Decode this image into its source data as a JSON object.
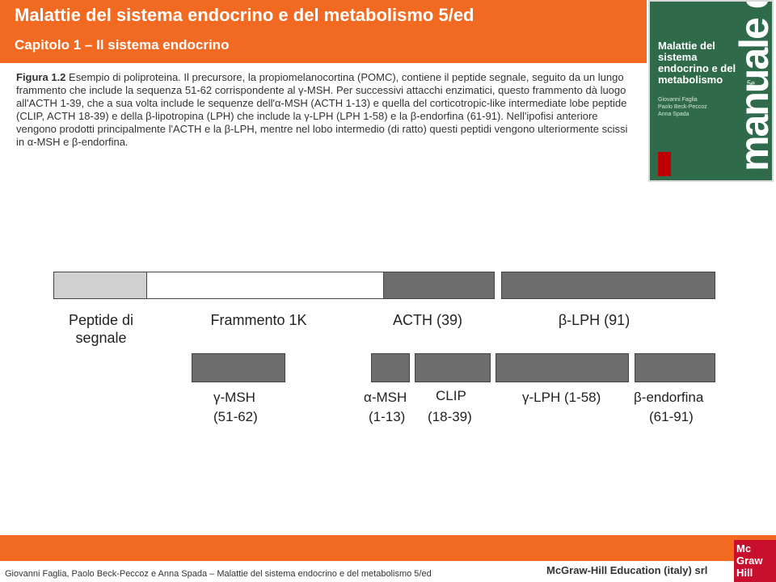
{
  "header": {
    "title": "Malattie del sistema endocrino e del metabolismo 5/ed",
    "subtitle": "Capitolo 1 – Il sistema endocrino"
  },
  "cover": {
    "title": "Malattie del sistema endocrino e del metabolismo",
    "edition": "5e",
    "authors": "Giovanni Faglia\nPaolo Beck-Peccoz\nAnna Spada",
    "series": "manuale di",
    "logo": "Mc Graw Hill"
  },
  "caption": {
    "label": "Figura 1.2",
    "text": "Esempio di poliproteina. Il precursore, la propiomelanocortina (POMC), contiene il peptide segnale, seguito da un lungo frammento che include la sequenza 51-62 corrispondente al γ-MSH. Per successivi attacchi enzimatici, questo frammento dà luogo all'ACTH 1-39, che a sua volta include le sequenze dell'α-MSH (ACTH 1-13) e quella del corticotropic-like intermediate lobe peptide (CLIP, ACTH 18-39) e della β-lipotropina (LPH) che include la γ-LPH (LPH 1-58) e la β-endorfina (61-91). Nell'ipofisi anteriore vengono prodotti principalmente l'ACTH e la β-LPH, mentre nel lobo intermedio (di ratto) questi peptidi vengono ulteriormente scissi in α-MSH e β-endorfina."
  },
  "diagram": {
    "top_labels": {
      "signal": "Peptide di segnale",
      "fragment": "Frammento 1K",
      "acth": "ACTH (39)",
      "lph": "β-LPH (91)"
    },
    "bottom_labels": {
      "gmsh": "γ-MSH",
      "gmsh_range": "(51-62)",
      "amsh": "α-MSH",
      "amsh_range": "(1-13)",
      "clip": "CLIP",
      "clip_range": "(18-39)",
      "glph": "γ-LPH (1-58)",
      "bend": "β-endorfina",
      "bend_range": "(61-91)"
    },
    "colors": {
      "signal": "#d0d0d0",
      "fragment": "#ffffff",
      "dark": "#6d6d6d"
    }
  },
  "footer": {
    "authors": "Giovanni Faglia, Paolo Beck-Peccoz e Anna Spada –  Malattie del sistema endocrino e del metabolismo 5/ed",
    "publisher": "McGraw-Hill Education (italy) srl",
    "logo": "Mc Graw Hill"
  }
}
